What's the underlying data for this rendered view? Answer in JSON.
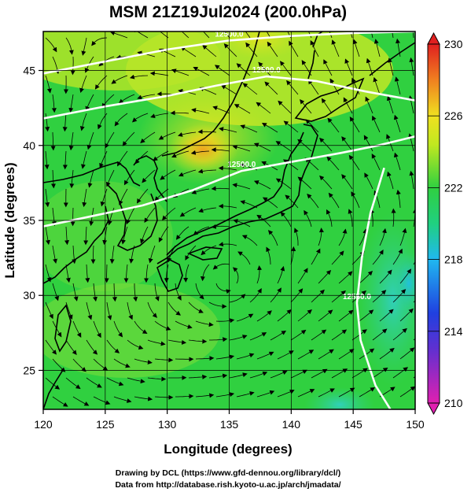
{
  "title": "MSM 21Z19Jul2024 (200.0hPa)",
  "x_axis": {
    "label": "Longitude (degrees)",
    "range": [
      120,
      150
    ],
    "ticks": [
      120,
      125,
      130,
      135,
      140,
      145,
      150
    ]
  },
  "y_axis": {
    "label": "Latitude  (degrees)",
    "range": [
      22.4,
      47.6
    ],
    "ticks": [
      25,
      30,
      35,
      40,
      45
    ]
  },
  "colorbar": {
    "range": [
      210,
      230
    ],
    "ticks": [
      210,
      214,
      218,
      222,
      226,
      230
    ],
    "colors": [
      "#e020a0",
      "#2040e0",
      "#20d0f0",
      "#20d050",
      "#b0e820",
      "#f0e020",
      "#f08020",
      "#e02020"
    ]
  },
  "contours": [
    {
      "label": "12500.0",
      "points": [
        [
          120,
          44.8
        ],
        [
          125,
          45.6
        ],
        [
          130,
          46.4
        ],
        [
          135,
          47.0
        ],
        [
          140,
          47.3
        ],
        [
          145,
          47.5
        ],
        [
          150,
          47.6
        ]
      ]
    },
    {
      "label": "12500.0",
      "points": [
        [
          120,
          41.8
        ],
        [
          125,
          42.6
        ],
        [
          130,
          43.3
        ],
        [
          134,
          44.0
        ],
        [
          138,
          44.6
        ],
        [
          142,
          44.3
        ],
        [
          146,
          43.6
        ],
        [
          150,
          43.0
        ]
      ]
    },
    {
      "label": "12500.0",
      "points": [
        [
          120,
          34.6
        ],
        [
          124,
          35.3
        ],
        [
          128,
          36.0
        ],
        [
          132,
          37.0
        ],
        [
          136,
          38.3
        ],
        [
          140,
          38.9
        ],
        [
          144,
          39.5
        ],
        [
          147,
          40.0
        ],
        [
          150,
          40.6
        ]
      ]
    },
    {
      "label": "12550.0",
      "points": [
        [
          147.5,
          38.5
        ],
        [
          146.4,
          35.5
        ],
        [
          145.7,
          32.5
        ],
        [
          145.3,
          29.5
        ],
        [
          145.6,
          27.0
        ],
        [
          146.8,
          24.0
        ],
        [
          148.0,
          22.4
        ]
      ]
    }
  ],
  "credits": {
    "line1": "Drawing by DCL (https://www.gfd-dennou.org/library/dcl/)",
    "line2": "Data from http://database.rish.kyoto-u.ac.jp/arch/jmadata/"
  }
}
